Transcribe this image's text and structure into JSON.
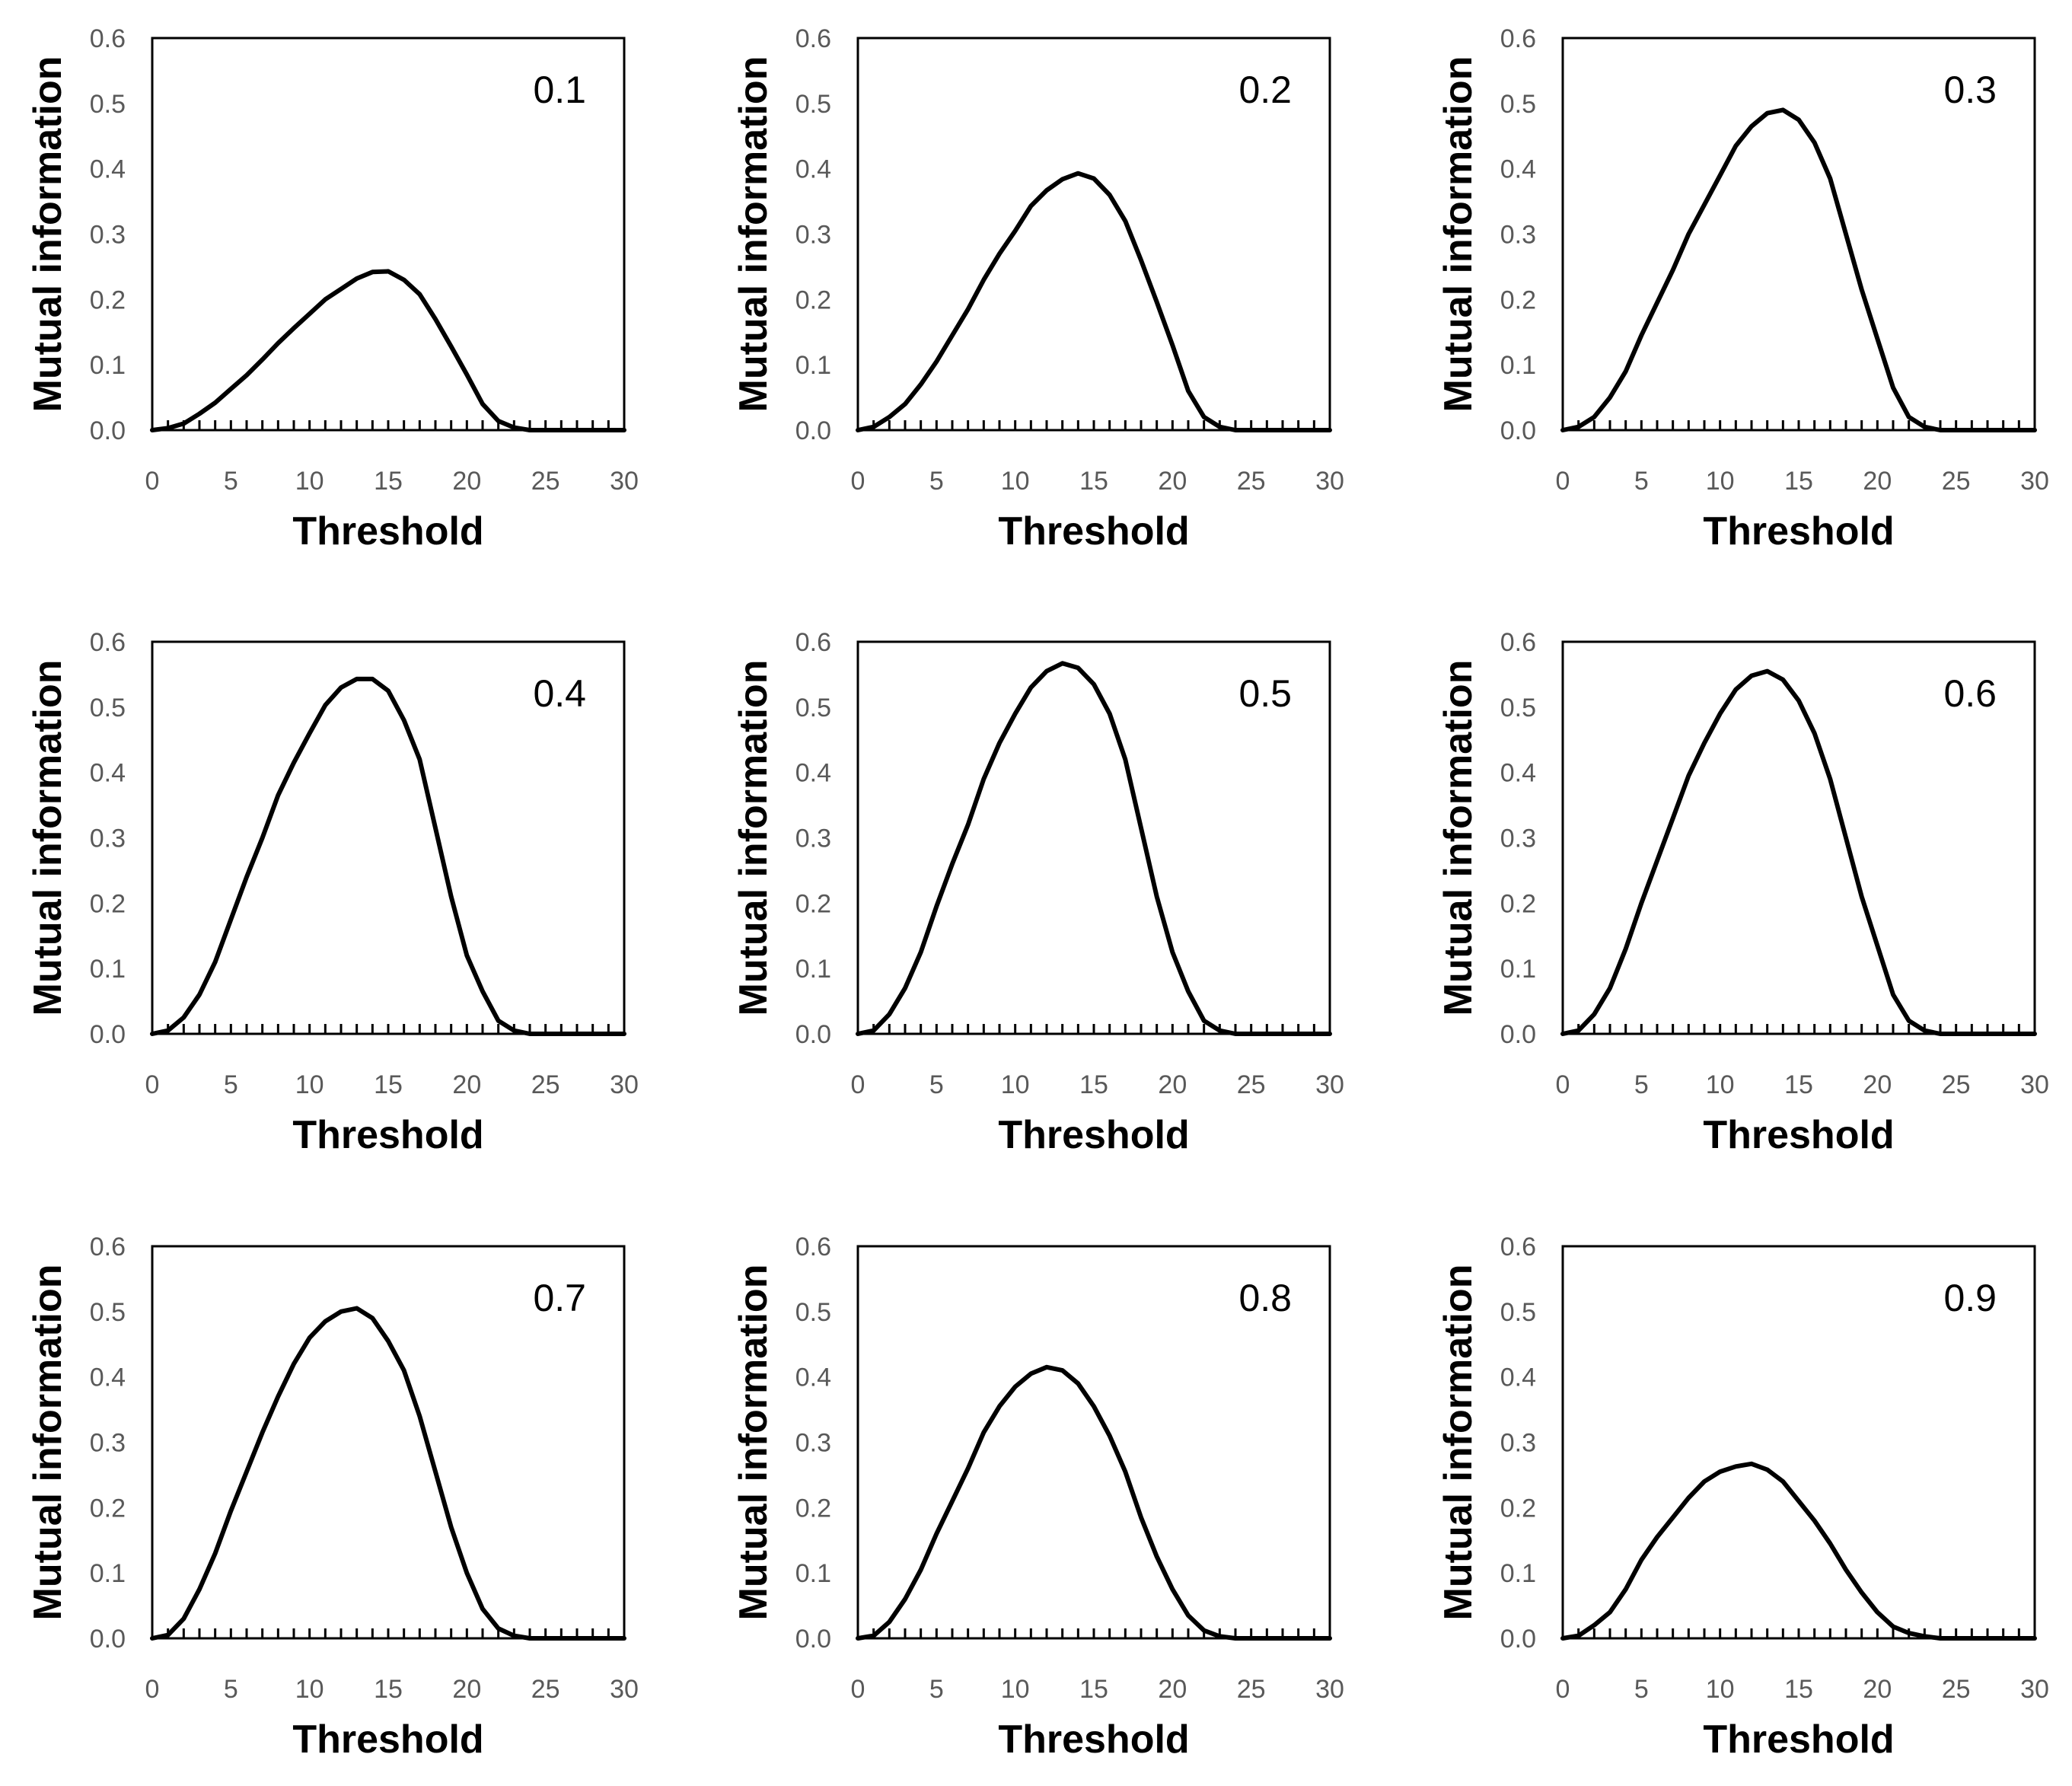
{
  "chart_data": [
    {
      "type": "line",
      "panel_label": "0.1",
      "xlabel": "Threshold",
      "ylabel": "Mutual information",
      "xlim": [
        0,
        30
      ],
      "ylim": [
        0,
        0.6
      ],
      "xticks": [
        "0",
        "5",
        "10",
        "15",
        "20",
        "25",
        "30"
      ],
      "yticks": [
        "0.0",
        "0.1",
        "0.2",
        "0.3",
        "0.4",
        "0.5",
        "0.6"
      ],
      "series": [
        {
          "name": "0.1",
          "x": [
            0,
            1,
            2,
            3,
            4,
            5,
            6,
            7,
            8,
            9,
            10,
            11,
            12,
            13,
            14,
            15,
            16,
            17,
            18,
            19,
            20,
            21,
            22,
            23,
            24,
            25,
            26,
            27,
            28,
            29,
            30
          ],
          "values": [
            0,
            0.003,
            0.01,
            0.025,
            0.042,
            0.063,
            0.084,
            0.108,
            0.133,
            0.156,
            0.178,
            0.2,
            0.216,
            0.232,
            0.242,
            0.243,
            0.23,
            0.208,
            0.17,
            0.128,
            0.085,
            0.04,
            0.014,
            0.004,
            0,
            0,
            0,
            0,
            0,
            0,
            0
          ]
        }
      ]
    },
    {
      "type": "line",
      "panel_label": "0.2",
      "xlabel": "Threshold",
      "ylabel": "Mutual information",
      "xlim": [
        0,
        30
      ],
      "ylim": [
        0,
        0.6
      ],
      "xticks": [
        "0",
        "5",
        "10",
        "15",
        "20",
        "25",
        "30"
      ],
      "yticks": [
        "0.0",
        "0.1",
        "0.2",
        "0.3",
        "0.4",
        "0.5",
        "0.6"
      ],
      "series": [
        {
          "name": "0.2",
          "x": [
            0,
            1,
            2,
            3,
            4,
            5,
            6,
            7,
            8,
            9,
            10,
            11,
            12,
            13,
            14,
            15,
            16,
            17,
            18,
            19,
            20,
            21,
            22,
            23,
            24,
            25,
            26,
            27,
            28,
            29,
            30
          ],
          "values": [
            0,
            0.005,
            0.02,
            0.04,
            0.07,
            0.105,
            0.145,
            0.185,
            0.23,
            0.27,
            0.305,
            0.343,
            0.367,
            0.384,
            0.393,
            0.385,
            0.36,
            0.32,
            0.26,
            0.196,
            0.13,
            0.06,
            0.02,
            0.005,
            0,
            0,
            0,
            0,
            0,
            0,
            0
          ]
        }
      ]
    },
    {
      "type": "line",
      "panel_label": "0.3",
      "xlabel": "Threshold",
      "ylabel": "Mutual information",
      "xlim": [
        0,
        30
      ],
      "ylim": [
        0,
        0.6
      ],
      "xticks": [
        "0",
        "5",
        "10",
        "15",
        "20",
        "25",
        "30"
      ],
      "yticks": [
        "0.0",
        "0.1",
        "0.2",
        "0.3",
        "0.4",
        "0.5",
        "0.6"
      ],
      "series": [
        {
          "name": "0.3",
          "x": [
            0,
            1,
            2,
            3,
            4,
            5,
            6,
            7,
            8,
            9,
            10,
            11,
            12,
            13,
            14,
            15,
            16,
            17,
            18,
            19,
            20,
            21,
            22,
            23,
            24,
            25,
            26,
            27,
            28,
            29,
            30
          ],
          "values": [
            0,
            0.005,
            0.02,
            0.05,
            0.09,
            0.145,
            0.195,
            0.245,
            0.3,
            0.345,
            0.39,
            0.435,
            0.465,
            0.485,
            0.49,
            0.475,
            0.44,
            0.385,
            0.3,
            0.215,
            0.14,
            0.065,
            0.02,
            0.005,
            0,
            0,
            0,
            0,
            0,
            0,
            0
          ]
        }
      ]
    },
    {
      "type": "line",
      "panel_label": "0.4",
      "xlabel": "Threshold",
      "ylabel": "Mutual information",
      "xlim": [
        0,
        30
      ],
      "ylim": [
        0,
        0.6
      ],
      "xticks": [
        "0",
        "5",
        "10",
        "15",
        "20",
        "25",
        "30"
      ],
      "yticks": [
        "0.0",
        "0.1",
        "0.2",
        "0.3",
        "0.4",
        "0.5",
        "0.6"
      ],
      "series": [
        {
          "name": "0.4",
          "x": [
            0,
            1,
            2,
            3,
            4,
            5,
            6,
            7,
            8,
            9,
            10,
            11,
            12,
            13,
            14,
            15,
            16,
            17,
            18,
            19,
            20,
            21,
            22,
            23,
            24,
            25,
            26,
            27,
            28,
            29,
            30
          ],
          "values": [
            0,
            0.005,
            0.025,
            0.06,
            0.11,
            0.175,
            0.24,
            0.3,
            0.365,
            0.415,
            0.46,
            0.503,
            0.53,
            0.543,
            0.543,
            0.525,
            0.48,
            0.42,
            0.315,
            0.21,
            0.12,
            0.065,
            0.02,
            0.005,
            0,
            0,
            0,
            0,
            0,
            0,
            0
          ]
        }
      ]
    },
    {
      "type": "line",
      "panel_label": "0.5",
      "xlabel": "Threshold",
      "ylabel": "Mutual information",
      "xlim": [
        0,
        30
      ],
      "ylim": [
        0,
        0.6
      ],
      "xticks": [
        "0",
        "5",
        "10",
        "15",
        "20",
        "25",
        "30"
      ],
      "yticks": [
        "0.0",
        "0.1",
        "0.2",
        "0.3",
        "0.4",
        "0.5",
        "0.6"
      ],
      "series": [
        {
          "name": "0.5",
          "x": [
            0,
            1,
            2,
            3,
            4,
            5,
            6,
            7,
            8,
            9,
            10,
            11,
            12,
            13,
            14,
            15,
            16,
            17,
            18,
            19,
            20,
            21,
            22,
            23,
            24,
            25,
            26,
            27,
            28,
            29,
            30
          ],
          "values": [
            0,
            0.005,
            0.03,
            0.07,
            0.125,
            0.195,
            0.26,
            0.32,
            0.39,
            0.445,
            0.49,
            0.53,
            0.555,
            0.567,
            0.56,
            0.535,
            0.49,
            0.42,
            0.315,
            0.21,
            0.125,
            0.065,
            0.02,
            0.005,
            0,
            0,
            0,
            0,
            0,
            0,
            0
          ]
        }
      ]
    },
    {
      "type": "line",
      "panel_label": "0.6",
      "xlabel": "Threshold",
      "ylabel": "Mutual information",
      "xlim": [
        0,
        30
      ],
      "ylim": [
        0,
        0.6
      ],
      "xticks": [
        "0",
        "5",
        "10",
        "15",
        "20",
        "25",
        "30"
      ],
      "yticks": [
        "0.0",
        "0.1",
        "0.2",
        "0.3",
        "0.4",
        "0.5",
        "0.6"
      ],
      "series": [
        {
          "name": "0.6",
          "x": [
            0,
            1,
            2,
            3,
            4,
            5,
            6,
            7,
            8,
            9,
            10,
            11,
            12,
            13,
            14,
            15,
            16,
            17,
            18,
            19,
            20,
            21,
            22,
            23,
            24,
            25,
            26,
            27,
            28,
            29,
            30
          ],
          "values": [
            0,
            0.005,
            0.03,
            0.07,
            0.13,
            0.2,
            0.265,
            0.33,
            0.395,
            0.445,
            0.49,
            0.527,
            0.548,
            0.555,
            0.542,
            0.51,
            0.46,
            0.39,
            0.3,
            0.21,
            0.135,
            0.06,
            0.02,
            0.005,
            0,
            0,
            0,
            0,
            0,
            0,
            0
          ]
        }
      ]
    },
    {
      "type": "line",
      "panel_label": "0.7",
      "xlabel": "Threshold",
      "ylabel": "Mutual information",
      "xlim": [
        0,
        30
      ],
      "ylim": [
        0,
        0.6
      ],
      "xticks": [
        "0",
        "5",
        "10",
        "15",
        "20",
        "25",
        "30"
      ],
      "yticks": [
        "0.0",
        "0.1",
        "0.2",
        "0.3",
        "0.4",
        "0.5",
        "0.6"
      ],
      "series": [
        {
          "name": "0.7",
          "x": [
            0,
            1,
            2,
            3,
            4,
            5,
            6,
            7,
            8,
            9,
            10,
            11,
            12,
            13,
            14,
            15,
            16,
            17,
            18,
            19,
            20,
            21,
            22,
            23,
            24,
            25,
            26,
            27,
            28,
            29,
            30
          ],
          "values": [
            0,
            0.005,
            0.03,
            0.075,
            0.13,
            0.195,
            0.255,
            0.315,
            0.37,
            0.42,
            0.46,
            0.485,
            0.5,
            0.505,
            0.49,
            0.455,
            0.41,
            0.34,
            0.255,
            0.17,
            0.1,
            0.045,
            0.015,
            0.004,
            0,
            0,
            0,
            0,
            0,
            0,
            0
          ]
        }
      ]
    },
    {
      "type": "line",
      "panel_label": "0.8",
      "xlabel": "Threshold",
      "ylabel": "Mutual information",
      "xlim": [
        0,
        30
      ],
      "ylim": [
        0,
        0.6
      ],
      "xticks": [
        "0",
        "5",
        "10",
        "15",
        "20",
        "25",
        "30"
      ],
      "yticks": [
        "0.0",
        "0.1",
        "0.2",
        "0.3",
        "0.4",
        "0.5",
        "0.6"
      ],
      "series": [
        {
          "name": "0.8",
          "x": [
            0,
            1,
            2,
            3,
            4,
            5,
            6,
            7,
            8,
            9,
            10,
            11,
            12,
            13,
            14,
            15,
            16,
            17,
            18,
            19,
            20,
            21,
            22,
            23,
            24,
            25,
            26,
            27,
            28,
            29,
            30
          ],
          "values": [
            0,
            0.004,
            0.025,
            0.06,
            0.105,
            0.16,
            0.21,
            0.26,
            0.315,
            0.355,
            0.385,
            0.405,
            0.415,
            0.41,
            0.39,
            0.355,
            0.31,
            0.255,
            0.185,
            0.125,
            0.075,
            0.035,
            0.012,
            0.003,
            0,
            0,
            0,
            0,
            0,
            0,
            0
          ]
        }
      ]
    },
    {
      "type": "line",
      "panel_label": "0.9",
      "xlabel": "Threshold",
      "ylabel": "Mutual information",
      "xlim": [
        0,
        30
      ],
      "ylim": [
        0,
        0.6
      ],
      "xticks": [
        "0",
        "5",
        "10",
        "15",
        "20",
        "25",
        "30"
      ],
      "yticks": [
        "0.0",
        "0.1",
        "0.2",
        "0.3",
        "0.4",
        "0.5",
        "0.6"
      ],
      "series": [
        {
          "name": "0.9",
          "x": [
            0,
            1,
            2,
            3,
            4,
            5,
            6,
            7,
            8,
            9,
            10,
            11,
            12,
            13,
            14,
            15,
            16,
            17,
            18,
            19,
            20,
            21,
            22,
            23,
            24,
            25,
            26,
            27,
            28,
            29,
            30
          ],
          "values": [
            0,
            0.004,
            0.02,
            0.04,
            0.075,
            0.12,
            0.155,
            0.185,
            0.215,
            0.24,
            0.255,
            0.263,
            0.267,
            0.258,
            0.24,
            0.21,
            0.18,
            0.145,
            0.105,
            0.07,
            0.04,
            0.018,
            0.008,
            0.003,
            0,
            0,
            0,
            0,
            0,
            0,
            0
          ]
        }
      ]
    }
  ]
}
